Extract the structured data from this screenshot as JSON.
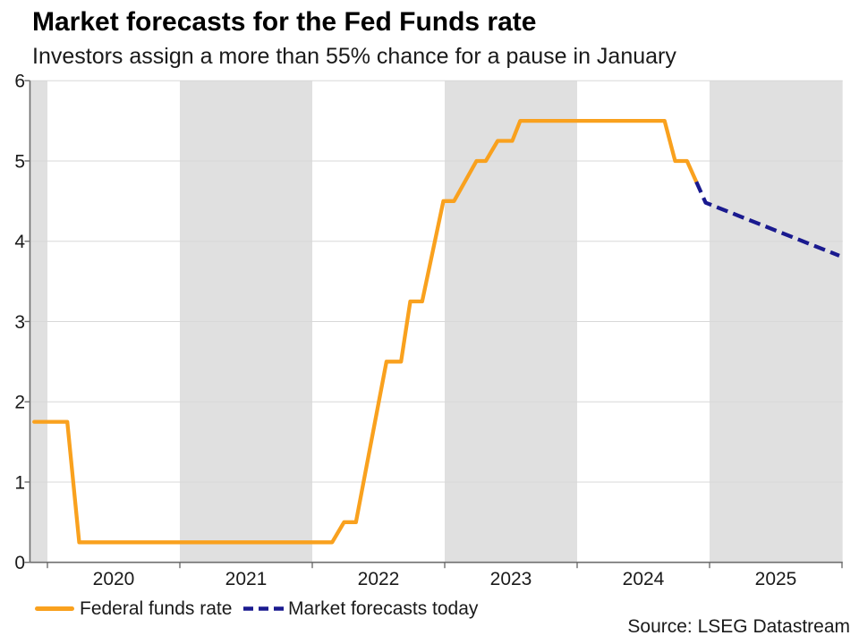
{
  "header": {
    "title": "Market forecasts for the Fed Funds rate",
    "subtitle": "Investors assign a more than 55% chance for a pause in January"
  },
  "source_note": "Source: LSEG Datastream",
  "legend": [
    {
      "label": "Federal funds rate",
      "color": "#F9A11E",
      "style": "solid"
    },
    {
      "label": "Market forecasts today",
      "color": "#1A1A8F",
      "style": "dashed"
    }
  ],
  "colors": {
    "band": "#E0E0E0",
    "gridline": "#D8D8D8",
    "axis": "#6E6E6E",
    "text": "#1A1A1A",
    "title": "#000000"
  },
  "chart_data": {
    "type": "line",
    "title": "Market forecasts for the Fed Funds rate",
    "subtitle": "Investors assign a more than 55% chance for a pause in January",
    "xlabel": "",
    "ylabel": "",
    "ylim": [
      0,
      6
    ],
    "x_range": [
      2019.868,
      2026.005
    ],
    "x_ticks": [
      2020,
      2021,
      2022,
      2023,
      2024,
      2025
    ],
    "y_ticks": [
      0,
      1,
      2,
      3,
      4,
      5,
      6
    ],
    "grid": "horizontal",
    "legend_position": "bottom-left",
    "shaded_bands_years": [
      [
        2019.868,
        2020
      ],
      [
        2021,
        2022
      ],
      [
        2023,
        2024
      ],
      [
        2025,
        2026.005
      ]
    ],
    "series": [
      {
        "name": "Federal funds rate",
        "color": "#F9A11E",
        "style": "solid",
        "points": [
          [
            2019.9,
            1.75
          ],
          [
            2020.15,
            1.75
          ],
          [
            2020.24,
            0.25
          ],
          [
            2022.15,
            0.25
          ],
          [
            2022.24,
            0.5
          ],
          [
            2022.33,
            0.5
          ],
          [
            2022.41,
            1.2
          ],
          [
            2022.56,
            2.5
          ],
          [
            2022.67,
            2.5
          ],
          [
            2022.74,
            3.25
          ],
          [
            2022.83,
            3.25
          ],
          [
            2022.99,
            4.5
          ],
          [
            2023.07,
            4.5
          ],
          [
            2023.24,
            5.0
          ],
          [
            2023.31,
            5.0
          ],
          [
            2023.4,
            5.25
          ],
          [
            2023.51,
            5.25
          ],
          [
            2023.57,
            5.5
          ],
          [
            2024.66,
            5.5
          ],
          [
            2024.74,
            5.0
          ],
          [
            2024.83,
            5.0
          ],
          [
            2024.9,
            4.74
          ]
        ]
      },
      {
        "name": "Market forecasts today",
        "color": "#1A1A8F",
        "style": "dashed",
        "points": [
          [
            2024.9,
            4.74
          ],
          [
            2024.97,
            4.48
          ],
          [
            2025.98,
            3.82
          ]
        ]
      }
    ]
  }
}
